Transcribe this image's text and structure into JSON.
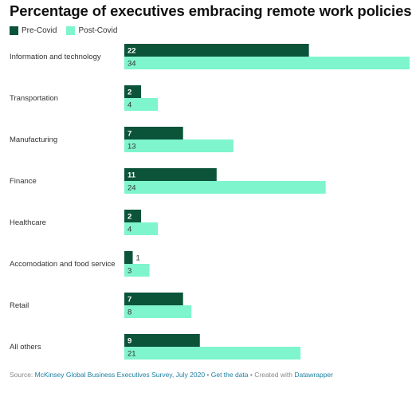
{
  "chart_data": {
    "type": "bar",
    "orientation": "horizontal",
    "title": "Percentage of executives embracing remote work policies",
    "categories": [
      "Information and technology",
      "Transportation",
      "Manufacturing",
      "Finance",
      "Healthcare",
      "Accomodation and food service",
      "Retail",
      "All others"
    ],
    "series": [
      {
        "name": "Pre-Covid",
        "color": "#0b5339",
        "values": [
          22,
          2,
          7,
          11,
          2,
          1,
          7,
          9
        ]
      },
      {
        "name": "Post-Covid",
        "color": "#7ef5cd",
        "values": [
          34,
          4,
          13,
          24,
          4,
          3,
          8,
          21
        ]
      }
    ],
    "xlim": [
      0,
      34
    ],
    "grid": false,
    "legend_position": "top-left"
  },
  "footer": {
    "source_prefix": "Source: ",
    "source_link": "McKinsey Global Business Executives Survey, July 2020",
    "sep1": " • ",
    "get_data": "Get the data",
    "sep2": " • Created with ",
    "datawrapper": "Datawrapper"
  }
}
